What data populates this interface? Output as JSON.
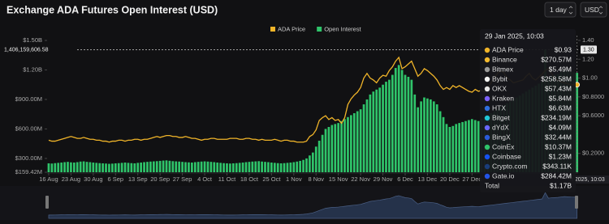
{
  "chart_data": {
    "type": "combo",
    "title": "Exchange ADA Futures Open Interest (USD)",
    "controls": {
      "interval": "1 day",
      "currency": "USD"
    },
    "categories": [
      "16 Aug",
      null,
      null,
      null,
      null,
      null,
      null,
      "23 Aug",
      null,
      null,
      null,
      null,
      null,
      null,
      "30 Aug",
      null,
      null,
      null,
      null,
      null,
      null,
      "6 Sep",
      null,
      null,
      null,
      null,
      null,
      null,
      "13 Sep",
      null,
      null,
      null,
      null,
      null,
      null,
      "20 Sep",
      null,
      null,
      null,
      null,
      null,
      null,
      "27 Sep",
      null,
      null,
      null,
      null,
      null,
      null,
      "4 Oct",
      null,
      null,
      null,
      null,
      null,
      null,
      "11 Oct",
      null,
      null,
      null,
      null,
      null,
      null,
      "18 Oct",
      null,
      null,
      null,
      null,
      null,
      null,
      "25 Oct",
      null,
      null,
      null,
      null,
      null,
      null,
      "1 Nov",
      null,
      null,
      null,
      null,
      null,
      null,
      "8 Nov",
      null,
      null,
      null,
      null,
      null,
      null,
      "15 Nov",
      null,
      null,
      null,
      null,
      null,
      null,
      "22 Nov",
      null,
      null,
      null,
      null,
      null,
      null,
      "29 Nov",
      null,
      null,
      null,
      null,
      null,
      null,
      "6 Dec",
      null,
      null,
      null,
      null,
      null,
      null,
      "13 Dec",
      null,
      null,
      null,
      null,
      null,
      null,
      "20 Dec",
      null,
      null,
      null,
      null,
      null,
      null,
      "27 Dec",
      null,
      null,
      null,
      null,
      null,
      null,
      null,
      null,
      null,
      null,
      null,
      null,
      null,
      null,
      null,
      null,
      null,
      null,
      null,
      null,
      null,
      null,
      null,
      null,
      null,
      null,
      null,
      null,
      null,
      null,
      null,
      null,
      null
    ],
    "series": [
      {
        "name": "ADA Price",
        "type": "line",
        "axis": "y2",
        "color": "#f0b429",
        "values": [
          0.34,
          0.33,
          0.33,
          0.34,
          0.35,
          0.36,
          0.37,
          0.38,
          0.37,
          0.36,
          0.36,
          0.37,
          0.36,
          0.35,
          0.35,
          0.34,
          0.34,
          0.33,
          0.33,
          0.32,
          0.33,
          0.33,
          0.34,
          0.34,
          0.33,
          0.34,
          0.34,
          0.35,
          0.35,
          0.34,
          0.35,
          0.35,
          0.36,
          0.37,
          0.38,
          0.37,
          0.38,
          0.39,
          0.39,
          0.38,
          0.38,
          0.37,
          0.37,
          0.38,
          0.37,
          0.36,
          0.36,
          0.35,
          0.34,
          0.35,
          0.35,
          0.36,
          0.36,
          0.35,
          0.35,
          0.35,
          0.35,
          0.36,
          0.36,
          0.36,
          0.35,
          0.35,
          0.36,
          0.36,
          0.35,
          0.35,
          0.34,
          0.35,
          0.34,
          0.34,
          0.34,
          0.35,
          0.34,
          0.33,
          0.34,
          0.34,
          0.33,
          0.33,
          0.32,
          0.32,
          0.32,
          0.33,
          0.38,
          0.4,
          0.45,
          0.55,
          0.58,
          0.6,
          0.56,
          0.58,
          0.55,
          0.56,
          0.52,
          0.58,
          0.72,
          0.78,
          0.82,
          0.85,
          0.9,
          1.0,
          1.05,
          1.0,
          0.98,
          0.95,
          1.0,
          1.03,
          1.02,
          1.08,
          1.12,
          1.18,
          1.22,
          1.1,
          1.12,
          1.15,
          1.18,
          1.1,
          1.02,
          1.05,
          1.1,
          1.08,
          1.05,
          1.02,
          0.98,
          0.92,
          0.88,
          0.9,
          0.88,
          0.92,
          0.9,
          0.92,
          0.9,
          0.88,
          0.86,
          0.85,
          0.88,
          0.86,
          0.87,
          0.85,
          0.9,
          0.95,
          1.0,
          1.05,
          1.08,
          1.06,
          1.0,
          0.98,
          0.95,
          0.96,
          0.97,
          0.98,
          1.02,
          1.05,
          1.0,
          0.98,
          1.01,
          1.04,
          1.08,
          1.1,
          1.05,
          1.0,
          0.98,
          0.96,
          0.95,
          0.94,
          0.93,
          0.93,
          0.93
        ]
      },
      {
        "name": "Open Interest",
        "type": "bar",
        "axis": "y",
        "color": "#2fc46a",
        "values": [
          250000000,
          248000000,
          252000000,
          255000000,
          258000000,
          262000000,
          265000000,
          260000000,
          258000000,
          262000000,
          268000000,
          270000000,
          265000000,
          262000000,
          258000000,
          255000000,
          252000000,
          250000000,
          248000000,
          245000000,
          247000000,
          250000000,
          252000000,
          255000000,
          258000000,
          255000000,
          252000000,
          250000000,
          255000000,
          258000000,
          262000000,
          265000000,
          268000000,
          270000000,
          272000000,
          275000000,
          278000000,
          280000000,
          276000000,
          272000000,
          270000000,
          268000000,
          265000000,
          262000000,
          260000000,
          258000000,
          262000000,
          265000000,
          268000000,
          270000000,
          268000000,
          265000000,
          262000000,
          258000000,
          255000000,
          252000000,
          250000000,
          248000000,
          250000000,
          252000000,
          255000000,
          258000000,
          262000000,
          265000000,
          268000000,
          270000000,
          272000000,
          268000000,
          265000000,
          262000000,
          258000000,
          255000000,
          252000000,
          250000000,
          252000000,
          255000000,
          258000000,
          262000000,
          268000000,
          275000000,
          285000000,
          300000000,
          330000000,
          360000000,
          420000000,
          480000000,
          540000000,
          600000000,
          620000000,
          640000000,
          650000000,
          660000000,
          680000000,
          700000000,
          720000000,
          740000000,
          760000000,
          780000000,
          800000000,
          850000000,
          900000000,
          950000000,
          980000000,
          1000000000,
          1020000000,
          1050000000,
          1080000000,
          1100000000,
          1150000000,
          1220000000,
          1250000000,
          1200000000,
          1150000000,
          1130000000,
          1100000000,
          950000000,
          820000000,
          880000000,
          920000000,
          910000000,
          900000000,
          880000000,
          850000000,
          780000000,
          720000000,
          650000000,
          620000000,
          630000000,
          650000000,
          660000000,
          670000000,
          680000000,
          690000000,
          700000000,
          690000000,
          680000000,
          700000000,
          720000000,
          740000000,
          760000000,
          780000000,
          800000000,
          820000000,
          840000000,
          860000000,
          880000000,
          900000000,
          920000000,
          940000000,
          960000000,
          980000000,
          1000000000,
          1020000000,
          1040000000,
          1060000000,
          1080000000,
          1406159606.58,
          1120000000,
          1140000000,
          1150000000,
          1160000000,
          1180000000,
          1200000000,
          1190000000,
          1180000000,
          1175000000,
          1170000000
        ]
      }
    ],
    "ylim": [
      159420000,
      1500000000
    ],
    "yticks": [
      {
        "value": 159420000,
        "label": "$159.42M"
      },
      {
        "value": 300000000,
        "label": "$300.00M"
      },
      {
        "value": 600000000,
        "label": "$600.00M"
      },
      {
        "value": 900000000,
        "label": "$900.00M"
      },
      {
        "value": 1200000000,
        "label": "$1.20B"
      },
      {
        "value": 1500000000,
        "label": "$1.50B"
      }
    ],
    "y2lim": [
      0,
      1.4
    ],
    "y2ticks": [
      {
        "value": 0.2,
        "label": "$0.2000"
      },
      {
        "value": 0.6,
        "label": "$0.6000"
      },
      {
        "value": 0.8,
        "label": "$0.8000"
      },
      {
        "value": 1.0,
        "label": "$1.00"
      },
      {
        "value": 1.2,
        "label": "1.20"
      },
      {
        "value": 1.4,
        "label": "1.40"
      }
    ],
    "grid": false,
    "legend": "top",
    "horizontal_line": {
      "value": 1406159606.58,
      "label": "1,406,159,606.58",
      "y2_label": "1.30"
    },
    "crosshair_label": "n 2025, 10:03",
    "tooltip": {
      "title": "29 Jan 2025, 10:03",
      "rows": [
        [
          "ADA Price",
          "$0.93"
        ],
        [
          "Binance",
          "$270.57M"
        ],
        [
          "Bitmex",
          "$5.49M"
        ],
        [
          "Bybit",
          "$258.58M"
        ],
        [
          "OKX",
          "$57.43M"
        ],
        [
          "Kraken",
          "$5.84M"
        ],
        [
          "HTX",
          "$6.63M"
        ],
        [
          "Bitget",
          "$234.19M"
        ],
        [
          "dYdX",
          "$4.09M"
        ],
        [
          "BingX",
          "$32.44M"
        ],
        [
          "CoinEx",
          "$10.37M"
        ],
        [
          "Coinbase",
          "$1.23M"
        ],
        [
          "Crypto.com",
          "$343.11K"
        ],
        [
          "Gate.io",
          "$284.42M"
        ]
      ],
      "total": [
        "Total",
        "$1.17B"
      ]
    }
  }
}
